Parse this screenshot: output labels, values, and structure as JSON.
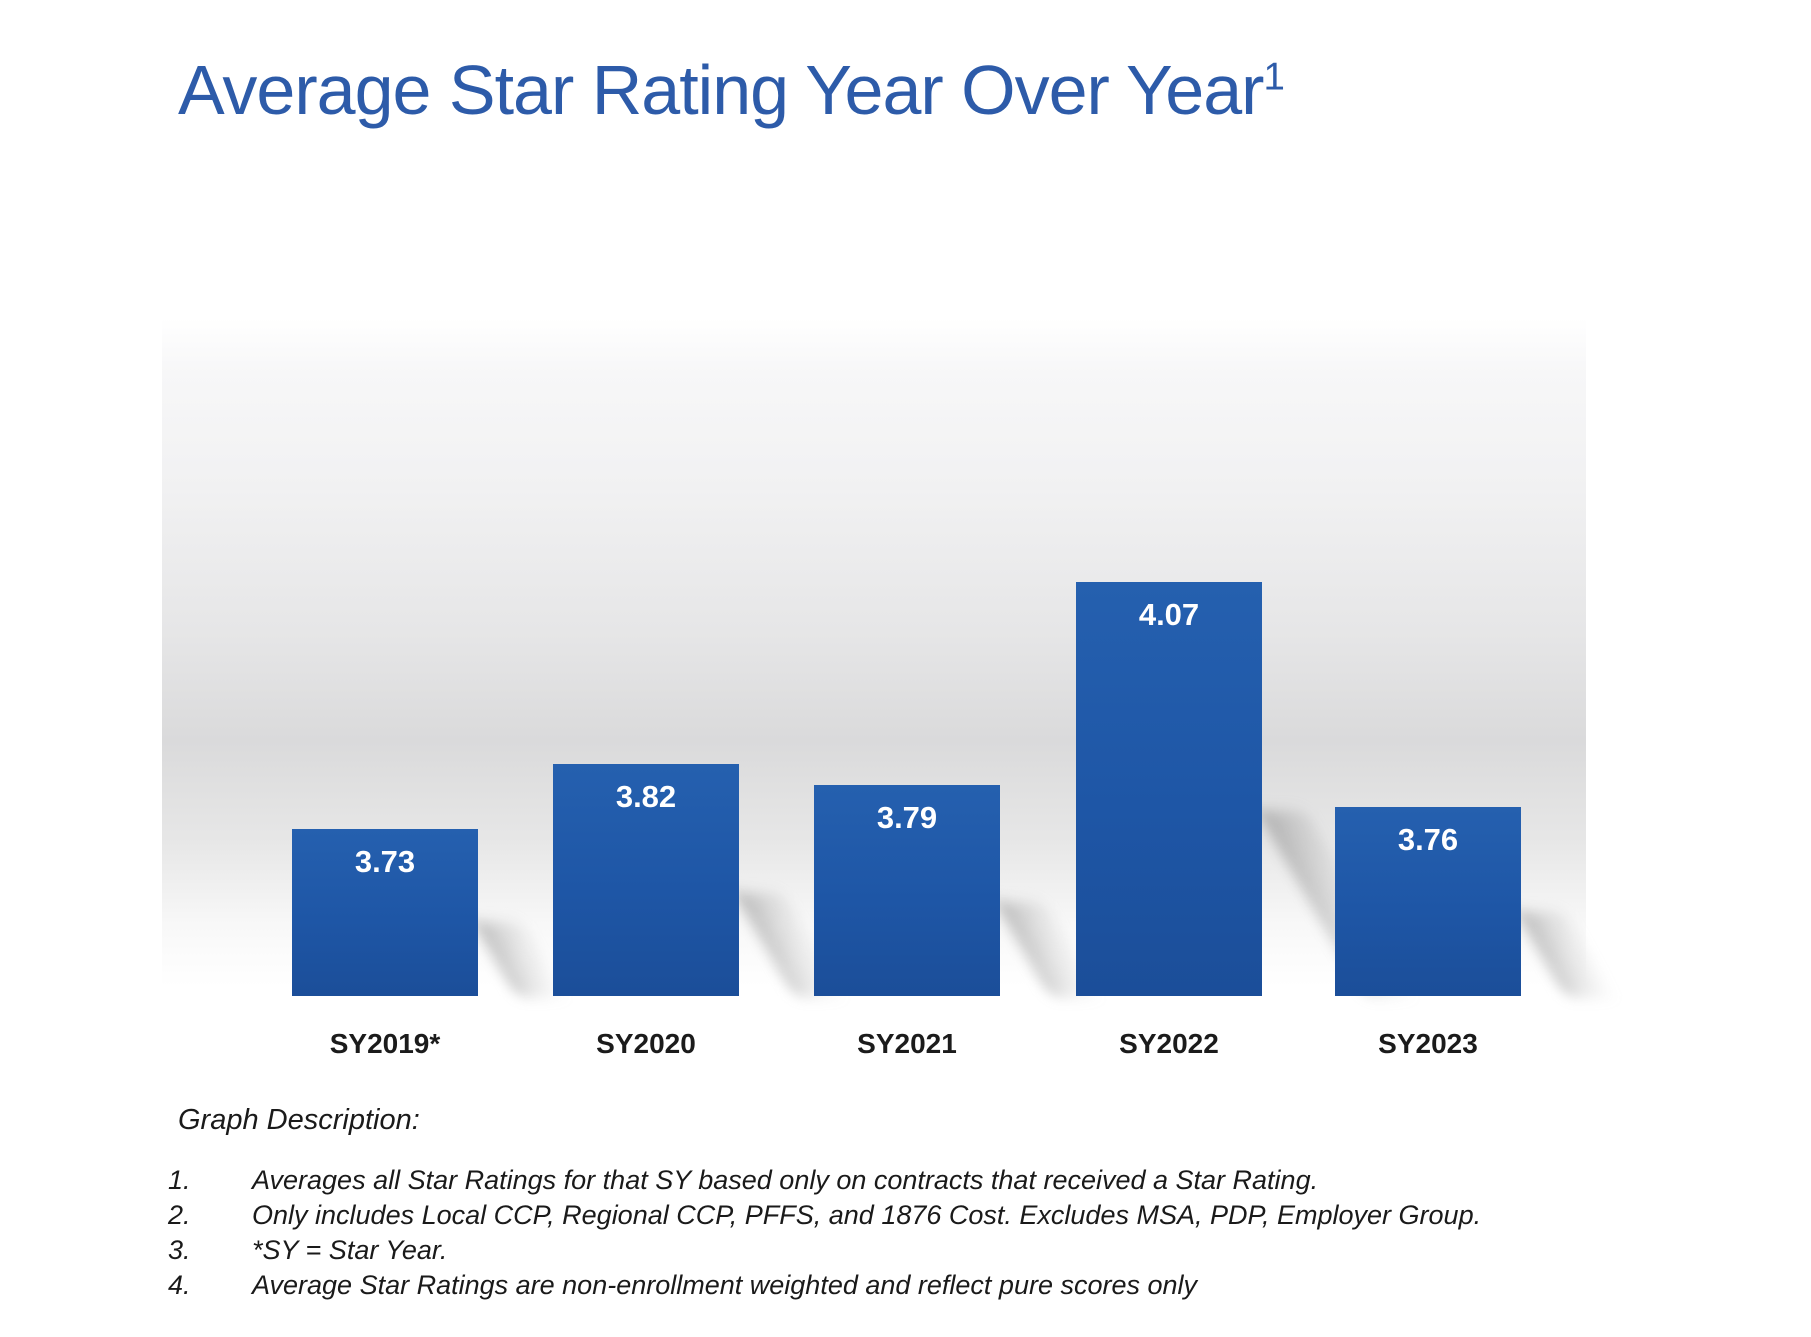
{
  "title": {
    "text": "Average Star Rating Year Over Year",
    "superscript": "1"
  },
  "chart_data": {
    "type": "bar",
    "title": "Average Star Rating Year Over Year",
    "categories": [
      "SY2019*",
      "SY2020",
      "SY2021",
      "SY2022",
      "SY2023"
    ],
    "values": [
      3.73,
      3.82,
      3.79,
      4.07,
      3.76
    ],
    "value_labels": [
      "3.73",
      "3.82",
      "3.79",
      "4.07",
      "3.76"
    ],
    "xlabel": "",
    "ylabel": "",
    "ylim": [
      3.5,
      4.2
    ],
    "grid": false,
    "legend": false,
    "y_axis_shown": false,
    "bar_color": "#1e56a6",
    "value_label_color": "#ffffff"
  },
  "description": {
    "heading": "Graph Description:",
    "items": [
      {
        "num": "1.",
        "text": "Averages all Star Ratings for that SY based only on contracts that received a Star Rating."
      },
      {
        "num": "2.",
        "text": "Only includes Local CCP, Regional CCP, PFFS, and 1876 Cost. Excludes MSA, PDP, Employer Group."
      },
      {
        "num": "3.",
        "text": "*SY = Star Year."
      },
      {
        "num": "4.",
        "text": "Average Star Ratings are non-enrollment weighted and reflect pure scores only"
      }
    ]
  },
  "colors": {
    "title_blue": "#2d5ba9",
    "bar_blue": "#1e56a6",
    "axis_label": "#1b1b1b"
  }
}
